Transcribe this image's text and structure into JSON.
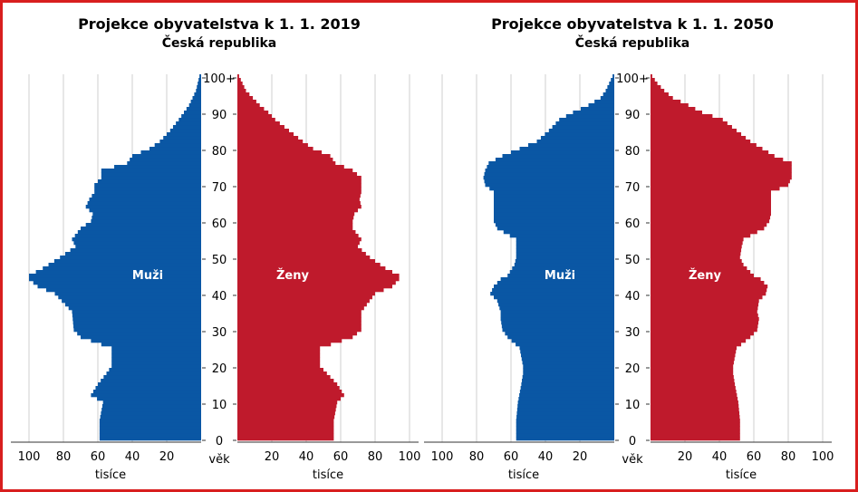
{
  "colors": {
    "male": "#0a57a4",
    "female": "#bf1a2c",
    "frame": "#d81e1e",
    "grid": "#cfcfcf"
  },
  "chart_data": [
    {
      "type": "population_pyramid",
      "title": "Projekce obyvatelstva k 1. 1. 2019",
      "subtitle": "Česká republika",
      "xlabel": "tisíce",
      "age_label": "věk",
      "series": [
        {
          "name": "Muži",
          "side": "left",
          "ages": [
            0,
            5,
            10,
            12,
            15,
            18,
            20,
            25,
            28,
            30,
            35,
            40,
            42,
            44,
            45,
            47,
            50,
            53,
            55,
            58,
            60,
            62,
            64,
            66,
            68,
            70,
            72,
            74,
            76,
            78,
            80,
            82,
            85,
            88,
            90,
            92,
            94,
            96,
            98,
            100
          ],
          "values": [
            59,
            59,
            57,
            64,
            60,
            55,
            52,
            52,
            70,
            74,
            75,
            85,
            95,
            100,
            100,
            92,
            82,
            73,
            75,
            70,
            64,
            63,
            67,
            65,
            62,
            62,
            58,
            58,
            43,
            40,
            30,
            24,
            18,
            13,
            10,
            7,
            5,
            3,
            2,
            1
          ]
        },
        {
          "name": "Ženy",
          "side": "right",
          "ages": [
            0,
            5,
            10,
            12,
            15,
            18,
            20,
            25,
            28,
            30,
            35,
            40,
            42,
            44,
            45,
            47,
            50,
            53,
            55,
            58,
            60,
            62,
            64,
            66,
            68,
            70,
            72,
            74,
            76,
            78,
            80,
            82,
            85,
            88,
            90,
            92,
            94,
            96,
            98,
            100
          ],
          "values": [
            56,
            56,
            58,
            62,
            58,
            52,
            48,
            48,
            67,
            72,
            72,
            80,
            90,
            94,
            94,
            86,
            77,
            70,
            72,
            67,
            67,
            68,
            72,
            71,
            72,
            72,
            72,
            67,
            57,
            54,
            44,
            38,
            30,
            22,
            18,
            13,
            9,
            5,
            3,
            1
          ]
        }
      ],
      "x_ticks": [
        "100",
        "80",
        "60",
        "40",
        "20",
        "20",
        "40",
        "60",
        "80",
        "100"
      ],
      "xlim": [
        0,
        100
      ],
      "y_ticks": [
        "0",
        "10",
        "20",
        "30",
        "40",
        "50",
        "60",
        "70",
        "80",
        "90",
        "100+"
      ],
      "ylim": [
        0,
        100
      ],
      "grid": true
    },
    {
      "type": "population_pyramid",
      "title": "Projekce obyvatelstva k 1. 1. 2050",
      "subtitle": "Česká republika",
      "xlabel": "tisíce",
      "age_label": "věk",
      "series": [
        {
          "name": "Muži",
          "side": "left",
          "ages": [
            0,
            5,
            10,
            15,
            18,
            20,
            25,
            28,
            30,
            33,
            35,
            38,
            40,
            42,
            44,
            45,
            48,
            50,
            53,
            55,
            58,
            60,
            62,
            64,
            66,
            68,
            70,
            72,
            74,
            76,
            78,
            80,
            82,
            85,
            88,
            90,
            92,
            94,
            96,
            98,
            100
          ],
          "values": [
            57,
            57,
            56,
            54,
            53,
            53,
            55,
            62,
            65,
            66,
            66,
            68,
            72,
            70,
            66,
            62,
            58,
            57,
            57,
            57,
            68,
            70,
            70,
            70,
            70,
            70,
            75,
            76,
            75,
            73,
            65,
            55,
            45,
            38,
            32,
            24,
            15,
            8,
            5,
            3,
            1
          ]
        },
        {
          "name": "Ženy",
          "side": "right",
          "ages": [
            0,
            5,
            10,
            15,
            18,
            20,
            25,
            28,
            30,
            33,
            35,
            38,
            40,
            42,
            44,
            45,
            48,
            50,
            53,
            55,
            58,
            60,
            62,
            64,
            66,
            68,
            70,
            72,
            74,
            76,
            78,
            80,
            82,
            85,
            88,
            90,
            92,
            94,
            96,
            98,
            100
          ],
          "values": [
            52,
            52,
            51,
            49,
            48,
            48,
            50,
            58,
            62,
            63,
            62,
            63,
            67,
            68,
            64,
            60,
            54,
            52,
            53,
            54,
            66,
            69,
            70,
            70,
            70,
            70,
            80,
            82,
            82,
            82,
            72,
            65,
            58,
            50,
            42,
            30,
            22,
            13,
            8,
            4,
            1
          ]
        }
      ],
      "x_ticks": [
        "100",
        "80",
        "60",
        "40",
        "20",
        "20",
        "40",
        "60",
        "80",
        "100"
      ],
      "xlim": [
        0,
        100
      ],
      "y_ticks": [
        "0",
        "10",
        "20",
        "30",
        "40",
        "50",
        "60",
        "70",
        "80",
        "90",
        "100+"
      ],
      "ylim": [
        0,
        100
      ],
      "grid": true
    }
  ]
}
